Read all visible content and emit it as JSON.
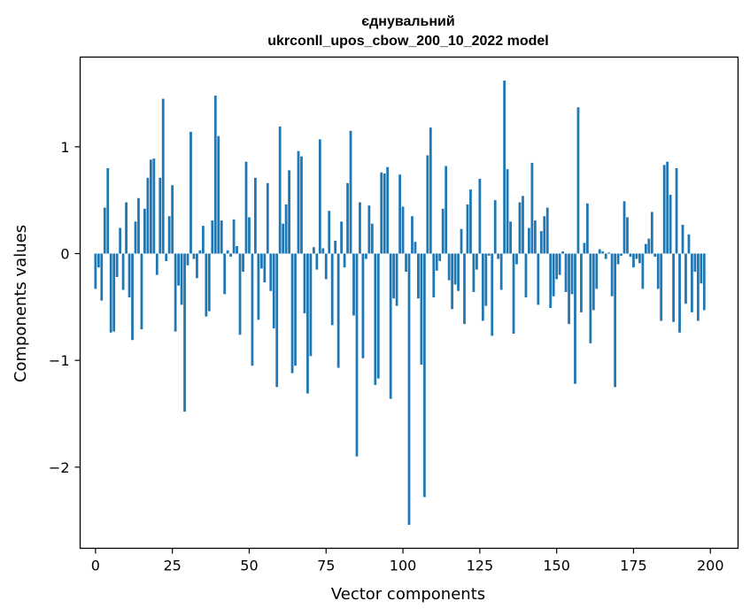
{
  "chart_data": {
    "type": "bar",
    "title": [
      "єднувальний",
      "ukrconll_upos_cbow_200_10_2022 model"
    ],
    "xlabel": "Vector components",
    "ylabel": "Components values",
    "xlim": [
      -5,
      209
    ],
    "ylim": [
      -2.76,
      1.84
    ],
    "xticks": [
      0,
      25,
      50,
      75,
      100,
      125,
      150,
      175,
      200
    ],
    "xtick_labels": [
      "0",
      "25",
      "50",
      "75",
      "100",
      "125",
      "150",
      "175",
      "200"
    ],
    "yticks": [
      -2,
      -1,
      0,
      1
    ],
    "ytick_labels": [
      "−2",
      "−1",
      "0",
      "1"
    ],
    "grid": false,
    "bar_color": "#1f77b4",
    "values": [
      -0.33,
      -0.13,
      -0.44,
      0.43,
      0.8,
      -0.74,
      -0.73,
      -0.22,
      0.24,
      -0.34,
      0.48,
      -0.41,
      -0.81,
      0.3,
      0.52,
      -0.71,
      0.42,
      0.71,
      0.88,
      0.89,
      -0.2,
      0.71,
      1.45,
      -0.07,
      0.35,
      0.64,
      -0.73,
      -0.3,
      -0.48,
      -1.48,
      -0.11,
      1.14,
      -0.05,
      -0.23,
      0.03,
      0.26,
      -0.59,
      -0.54,
      0.31,
      1.48,
      1.1,
      0.31,
      -0.38,
      0.03,
      -0.03,
      0.32,
      0.07,
      -0.76,
      -0.17,
      0.86,
      0.34,
      -1.05,
      0.71,
      -0.62,
      -0.14,
      -0.27,
      0.66,
      -0.35,
      -0.7,
      -1.25,
      1.19,
      0.28,
      0.46,
      0.78,
      -1.12,
      -1.05,
      0.96,
      0.91,
      -0.56,
      -1.31,
      -0.96,
      0.06,
      -0.15,
      1.07,
      0.05,
      -0.24,
      0.4,
      -0.67,
      0.12,
      -1.07,
      0.3,
      -0.13,
      0.66,
      1.15,
      -0.58,
      -1.9,
      0.48,
      -0.98,
      -0.05,
      0.45,
      0.28,
      -1.23,
      -1.17,
      0.76,
      0.75,
      0.81,
      -1.36,
      -0.42,
      -0.49,
      0.74,
      0.44,
      -0.17,
      -2.54,
      0.35,
      0.11,
      -0.42,
      -1.04,
      -2.28,
      0.92,
      1.18,
      -0.41,
      -0.16,
      -0.07,
      0.42,
      0.82,
      -0.25,
      -0.52,
      -0.29,
      -0.35,
      0.23,
      -0.66,
      0.46,
      0.6,
      -0.36,
      -0.15,
      0.7,
      -0.63,
      -0.49,
      -0.02,
      -0.77,
      0.5,
      -0.05,
      -0.34,
      1.62,
      0.79,
      0.3,
      -0.75,
      -0.1,
      0.48,
      0.54,
      -0.41,
      0.24,
      0.85,
      0.31,
      -0.48,
      0.21,
      0.35,
      0.43,
      -0.51,
      -0.4,
      -0.24,
      -0.2,
      0.02,
      -0.36,
      -0.66,
      -0.38,
      -1.22,
      1.37,
      -0.55,
      0.1,
      0.47,
      -0.84,
      -0.53,
      -0.33,
      0.04,
      0.02,
      -0.05,
      0.01,
      -0.4,
      -1.25,
      -0.1,
      -0.02,
      0.49,
      0.34,
      -0.03,
      -0.13,
      -0.05,
      -0.09,
      -0.33,
      0.09,
      0.14,
      0.39,
      -0.03,
      -0.33,
      -0.63,
      0.83,
      0.86,
      0.55,
      -0.64,
      0.8,
      -0.74,
      0.27,
      -0.47,
      0.18,
      -0.55,
      -0.17,
      -0.63,
      -0.28,
      -0.53
    ]
  }
}
